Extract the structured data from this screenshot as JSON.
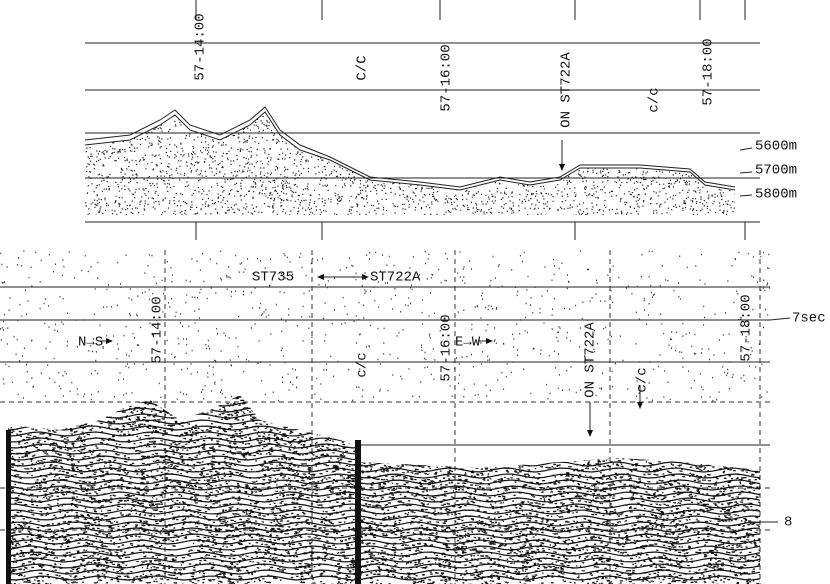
{
  "top_panel": {
    "time_marks": [
      "57-14:00",
      "57-16:00",
      "57-18:00"
    ],
    "course_changes": [
      "C/C",
      "c/c"
    ],
    "station_note": "ON ST722A",
    "depth_labels": [
      "5600m",
      "5700m",
      "5800m"
    ]
  },
  "bottom_panel": {
    "transit": {
      "from": "ST735",
      "to": "ST722A"
    },
    "headings": [
      "N→S",
      "E→W"
    ],
    "time_marks": [
      "57-14:00",
      "57-16:00",
      "57-18:00"
    ],
    "course_changes": [
      "c/c",
      "c/c"
    ],
    "station_note": "ON ST722A",
    "time_labels": [
      "7sec",
      "8"
    ]
  }
}
